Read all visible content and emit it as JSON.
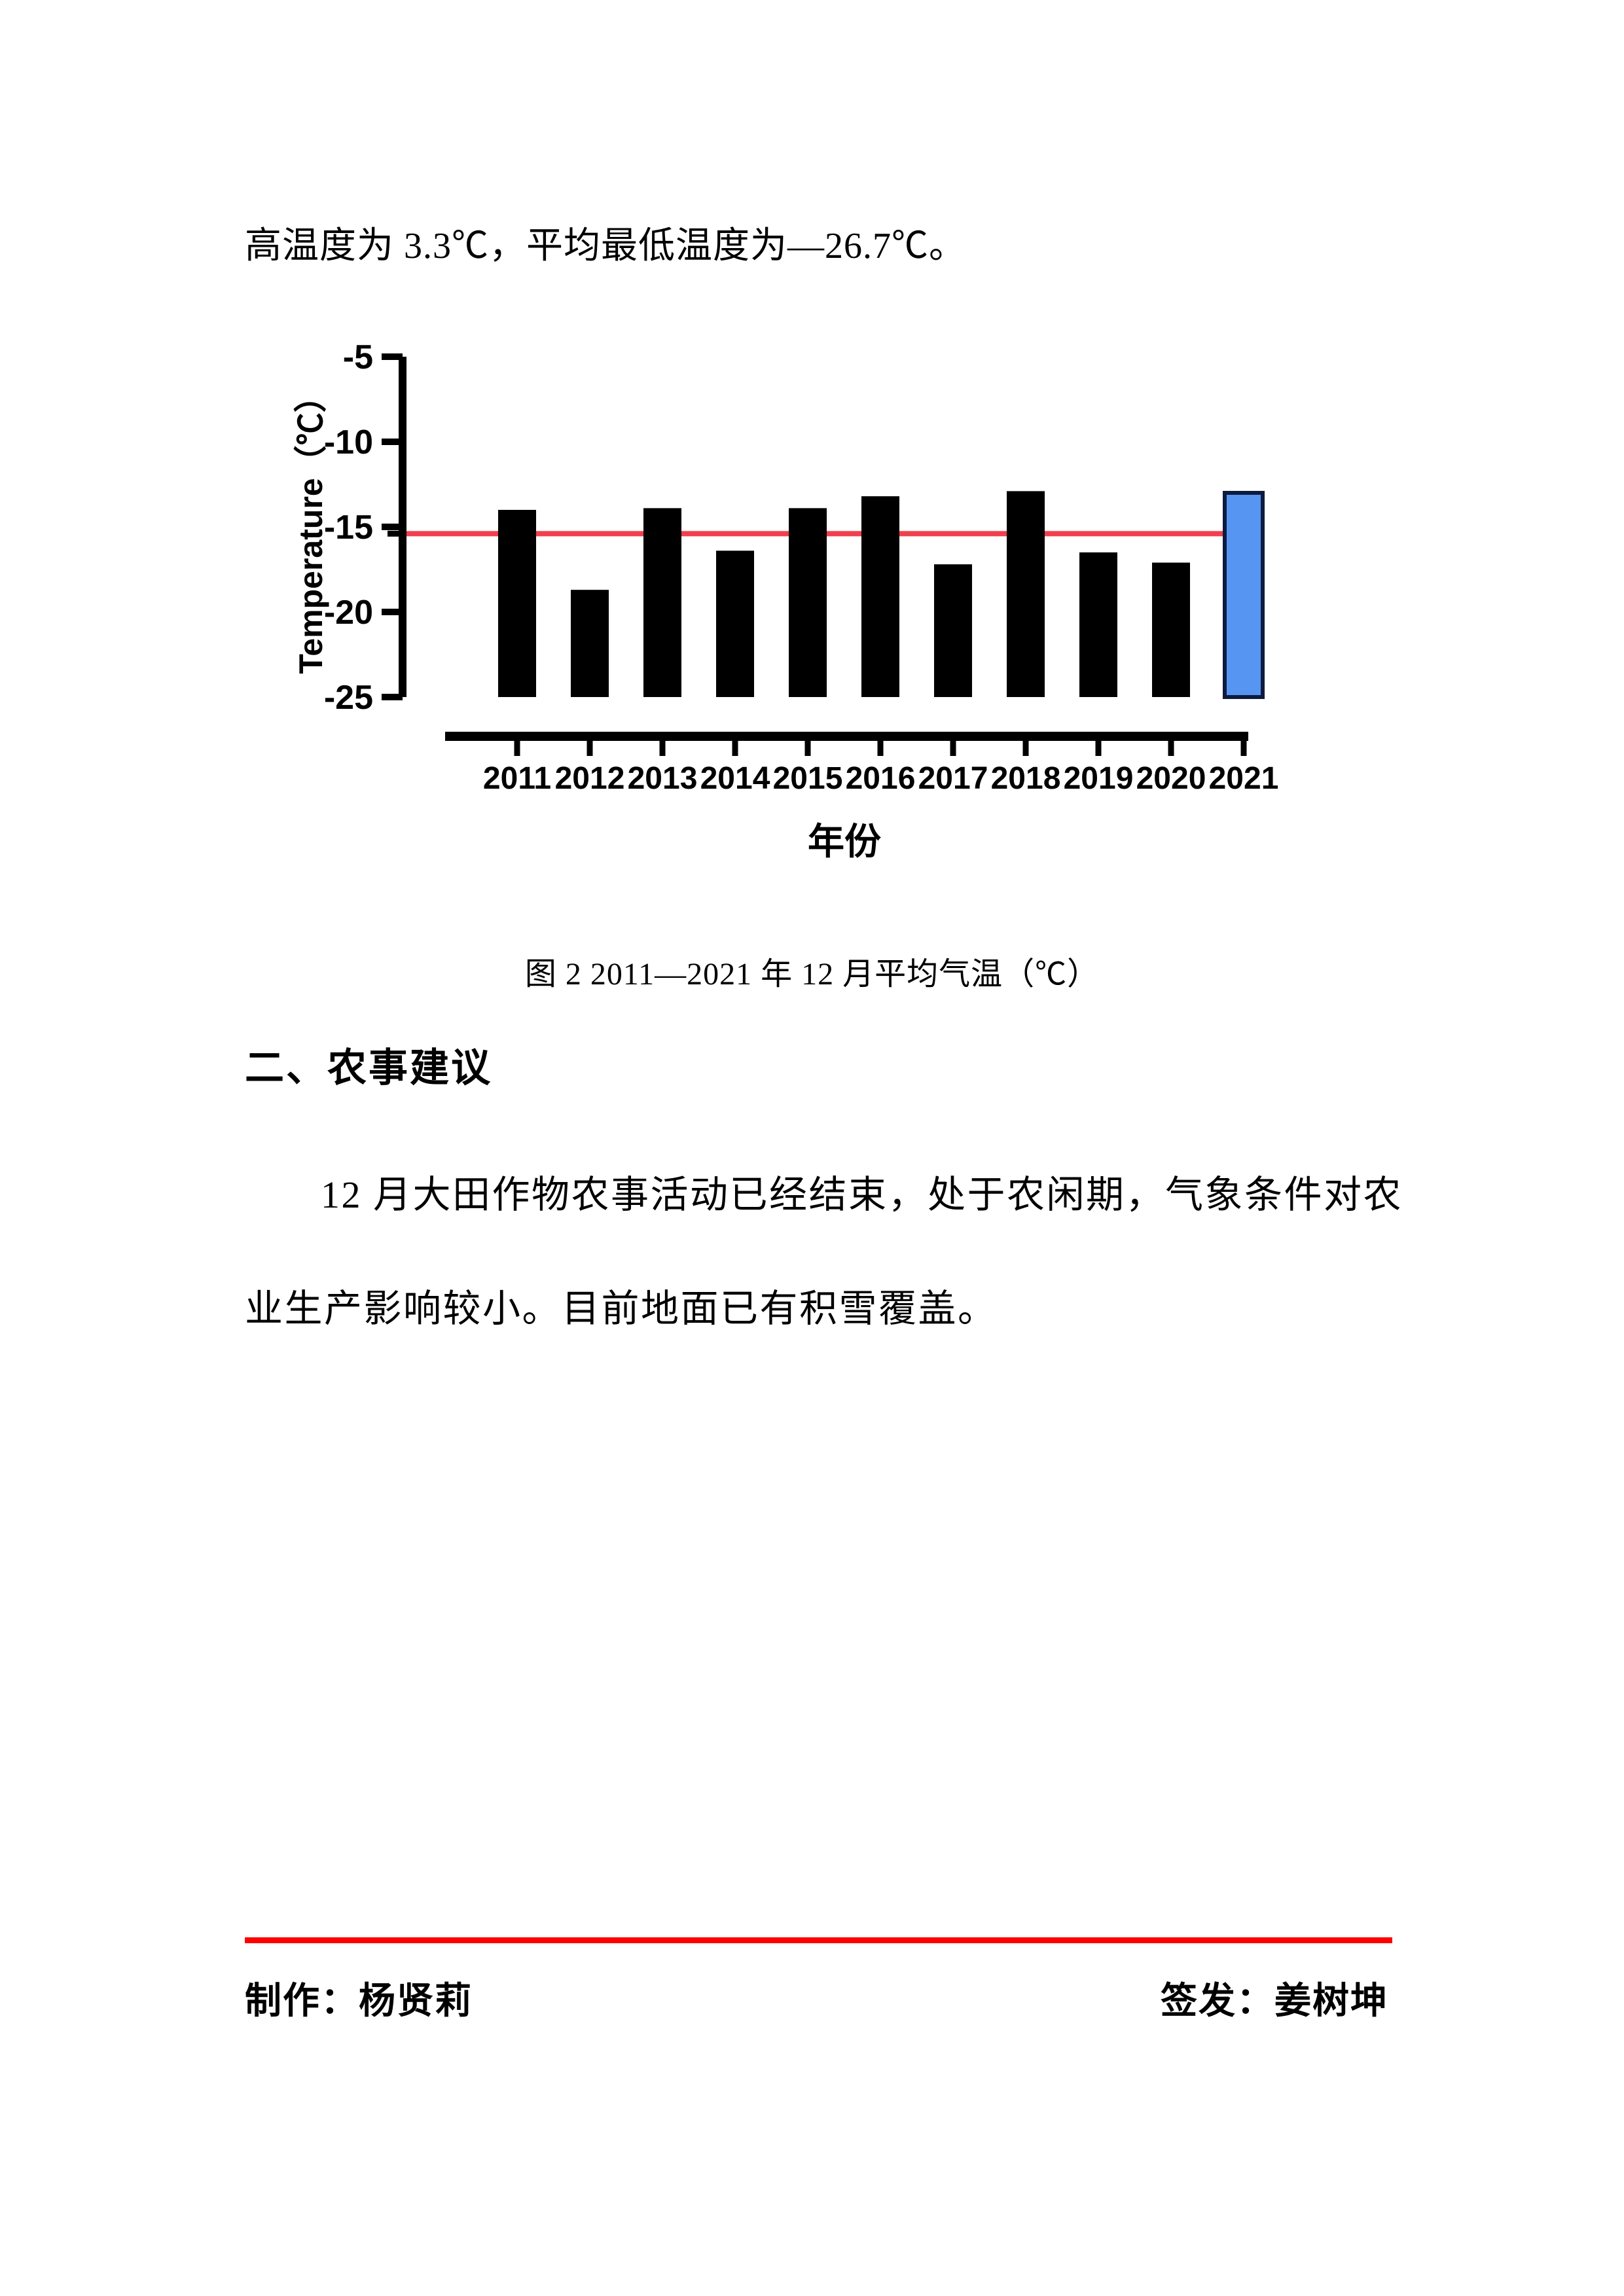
{
  "page": {
    "intro_line": "高温度为 3.3℃，平均最低温度为—26.7℃。",
    "figure_caption": "图 2 2011—2021 年 12 月平均气温（℃）",
    "section_heading": "二、农事建议",
    "paragraph_line1": "12 月大田作物农事活动已经结束，处于农闲期，气象条件对农",
    "paragraph_line2": "业生产影响较小。目前地面已有积雪覆盖。",
    "footer": {
      "producer": "制作：杨贤莉",
      "issuer": "签发：姜树坤",
      "rule_color": "#FF0000"
    }
  },
  "chart_data": {
    "type": "bar",
    "title": "",
    "categories": [
      "2011",
      "2012",
      "2013",
      "2014",
      "2015",
      "2016",
      "2017",
      "2018",
      "2019",
      "2020",
      "2021"
    ],
    "values": [
      -14.0,
      -18.7,
      -13.9,
      -16.4,
      -13.9,
      -13.2,
      -17.2,
      -12.9,
      -16.5,
      -17.1,
      -13.0
    ],
    "xlabel": "年份",
    "ylabel": "Temperature（℃）",
    "ylim": [
      -25,
      -5
    ],
    "yticks": [
      -5,
      -10,
      -15,
      -20,
      -25
    ],
    "baseline": -25,
    "grid": false,
    "legend": "none",
    "mean_line": {
      "value": -15.4,
      "color": "#F0404E"
    },
    "bar_color": "#000000",
    "axis_color": "#000000",
    "highlight": {
      "index": 10,
      "fill": "#5795F3",
      "stroke": "#0D1B3E"
    }
  }
}
